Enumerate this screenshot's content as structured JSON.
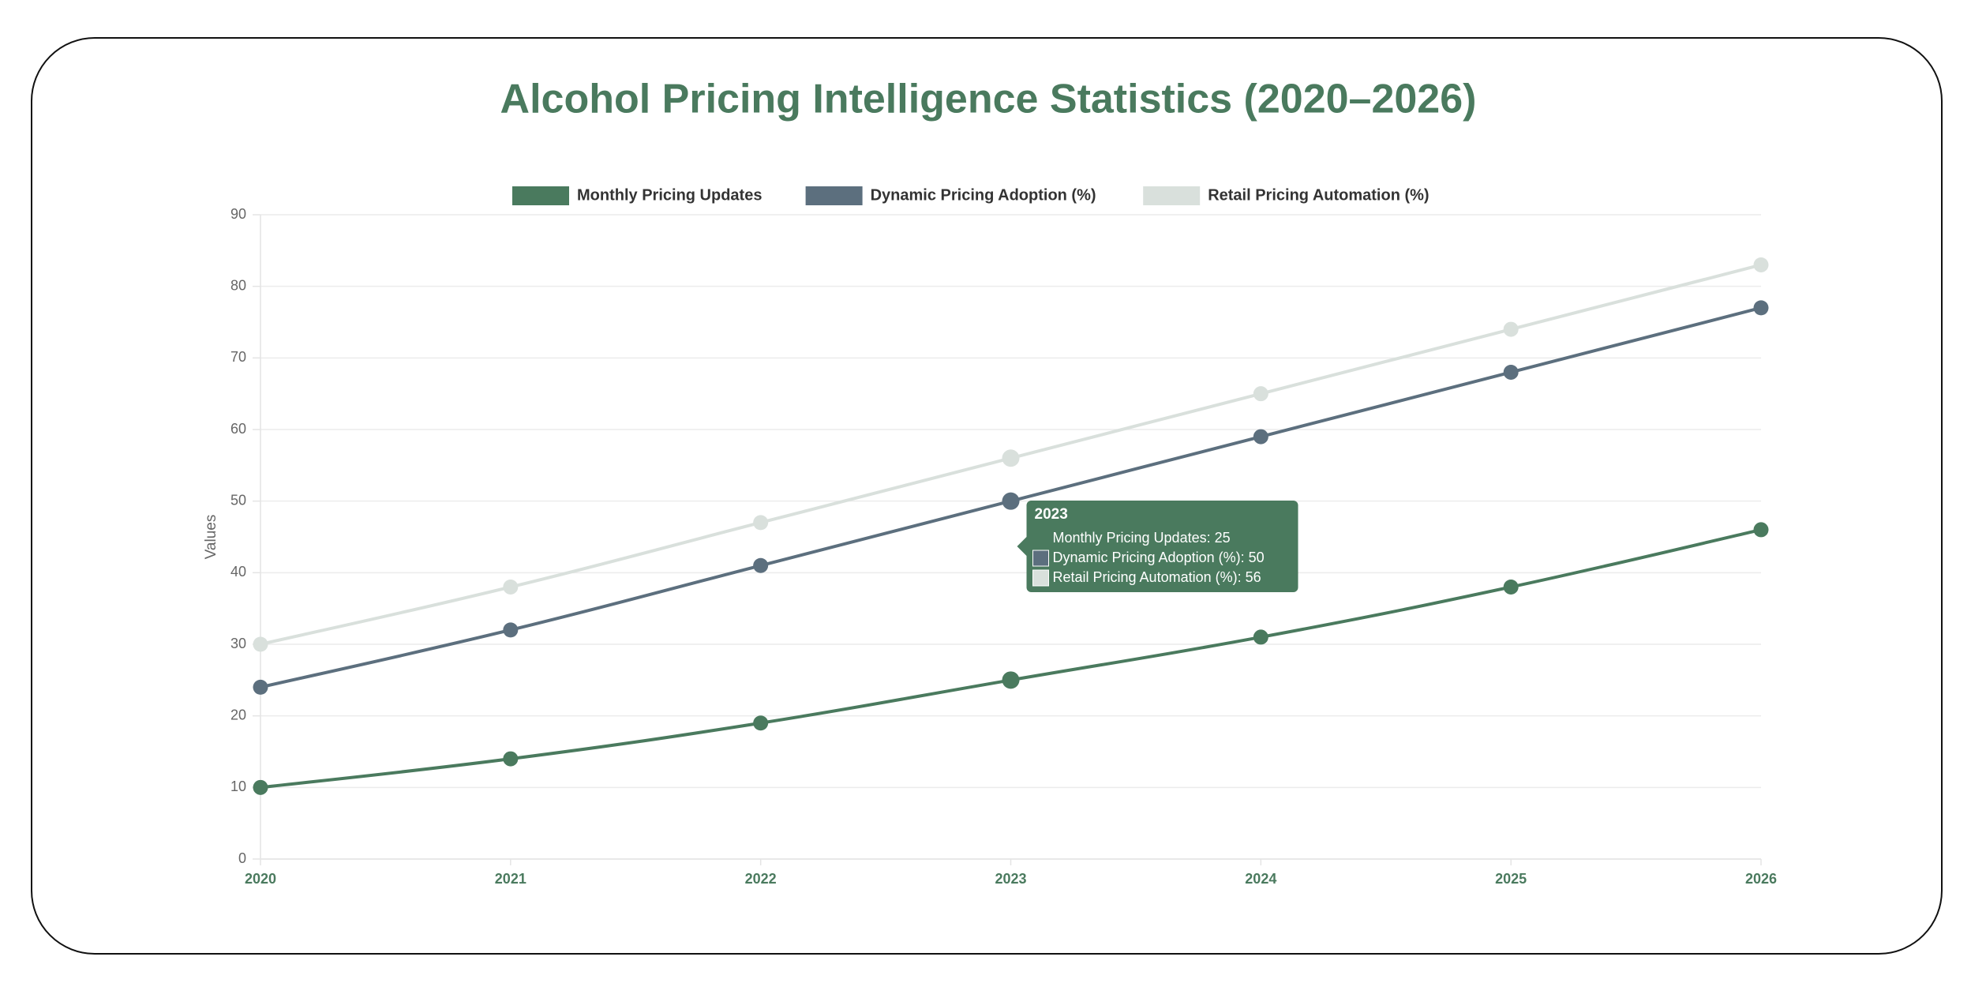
{
  "chart_data": {
    "type": "line",
    "title": "Alcohol Pricing Intelligence Statistics (2020–2026)",
    "y_label": "Values",
    "categories": [
      "2020",
      "2021",
      "2022",
      "2023",
      "2024",
      "2025",
      "2026"
    ],
    "series": [
      {
        "name": "Monthly Pricing Updates",
        "color": "#4a7a5e",
        "values": [
          10,
          14,
          19,
          25,
          31,
          38,
          46
        ]
      },
      {
        "name": "Dynamic Pricing Adoption (%)",
        "color": "#5c6f7e",
        "values": [
          24,
          32,
          41,
          50,
          59,
          68,
          77
        ]
      },
      {
        "name": "Retail Pricing Automation (%)",
        "color": "#d9e0dc",
        "values": [
          30,
          38,
          47,
          56,
          65,
          74,
          83
        ]
      }
    ],
    "ylim": [
      0,
      90
    ],
    "yticks": [
      0,
      10,
      20,
      30,
      40,
      50,
      60,
      70,
      80,
      90
    ],
    "grid": true,
    "legend": "top",
    "tooltip": {
      "title": "2023",
      "lines": [
        "Monthly Pricing Updates: 25",
        "Dynamic Pricing Adoption (%): 50",
        "Retail Pricing Automation (%): 56"
      ]
    }
  }
}
